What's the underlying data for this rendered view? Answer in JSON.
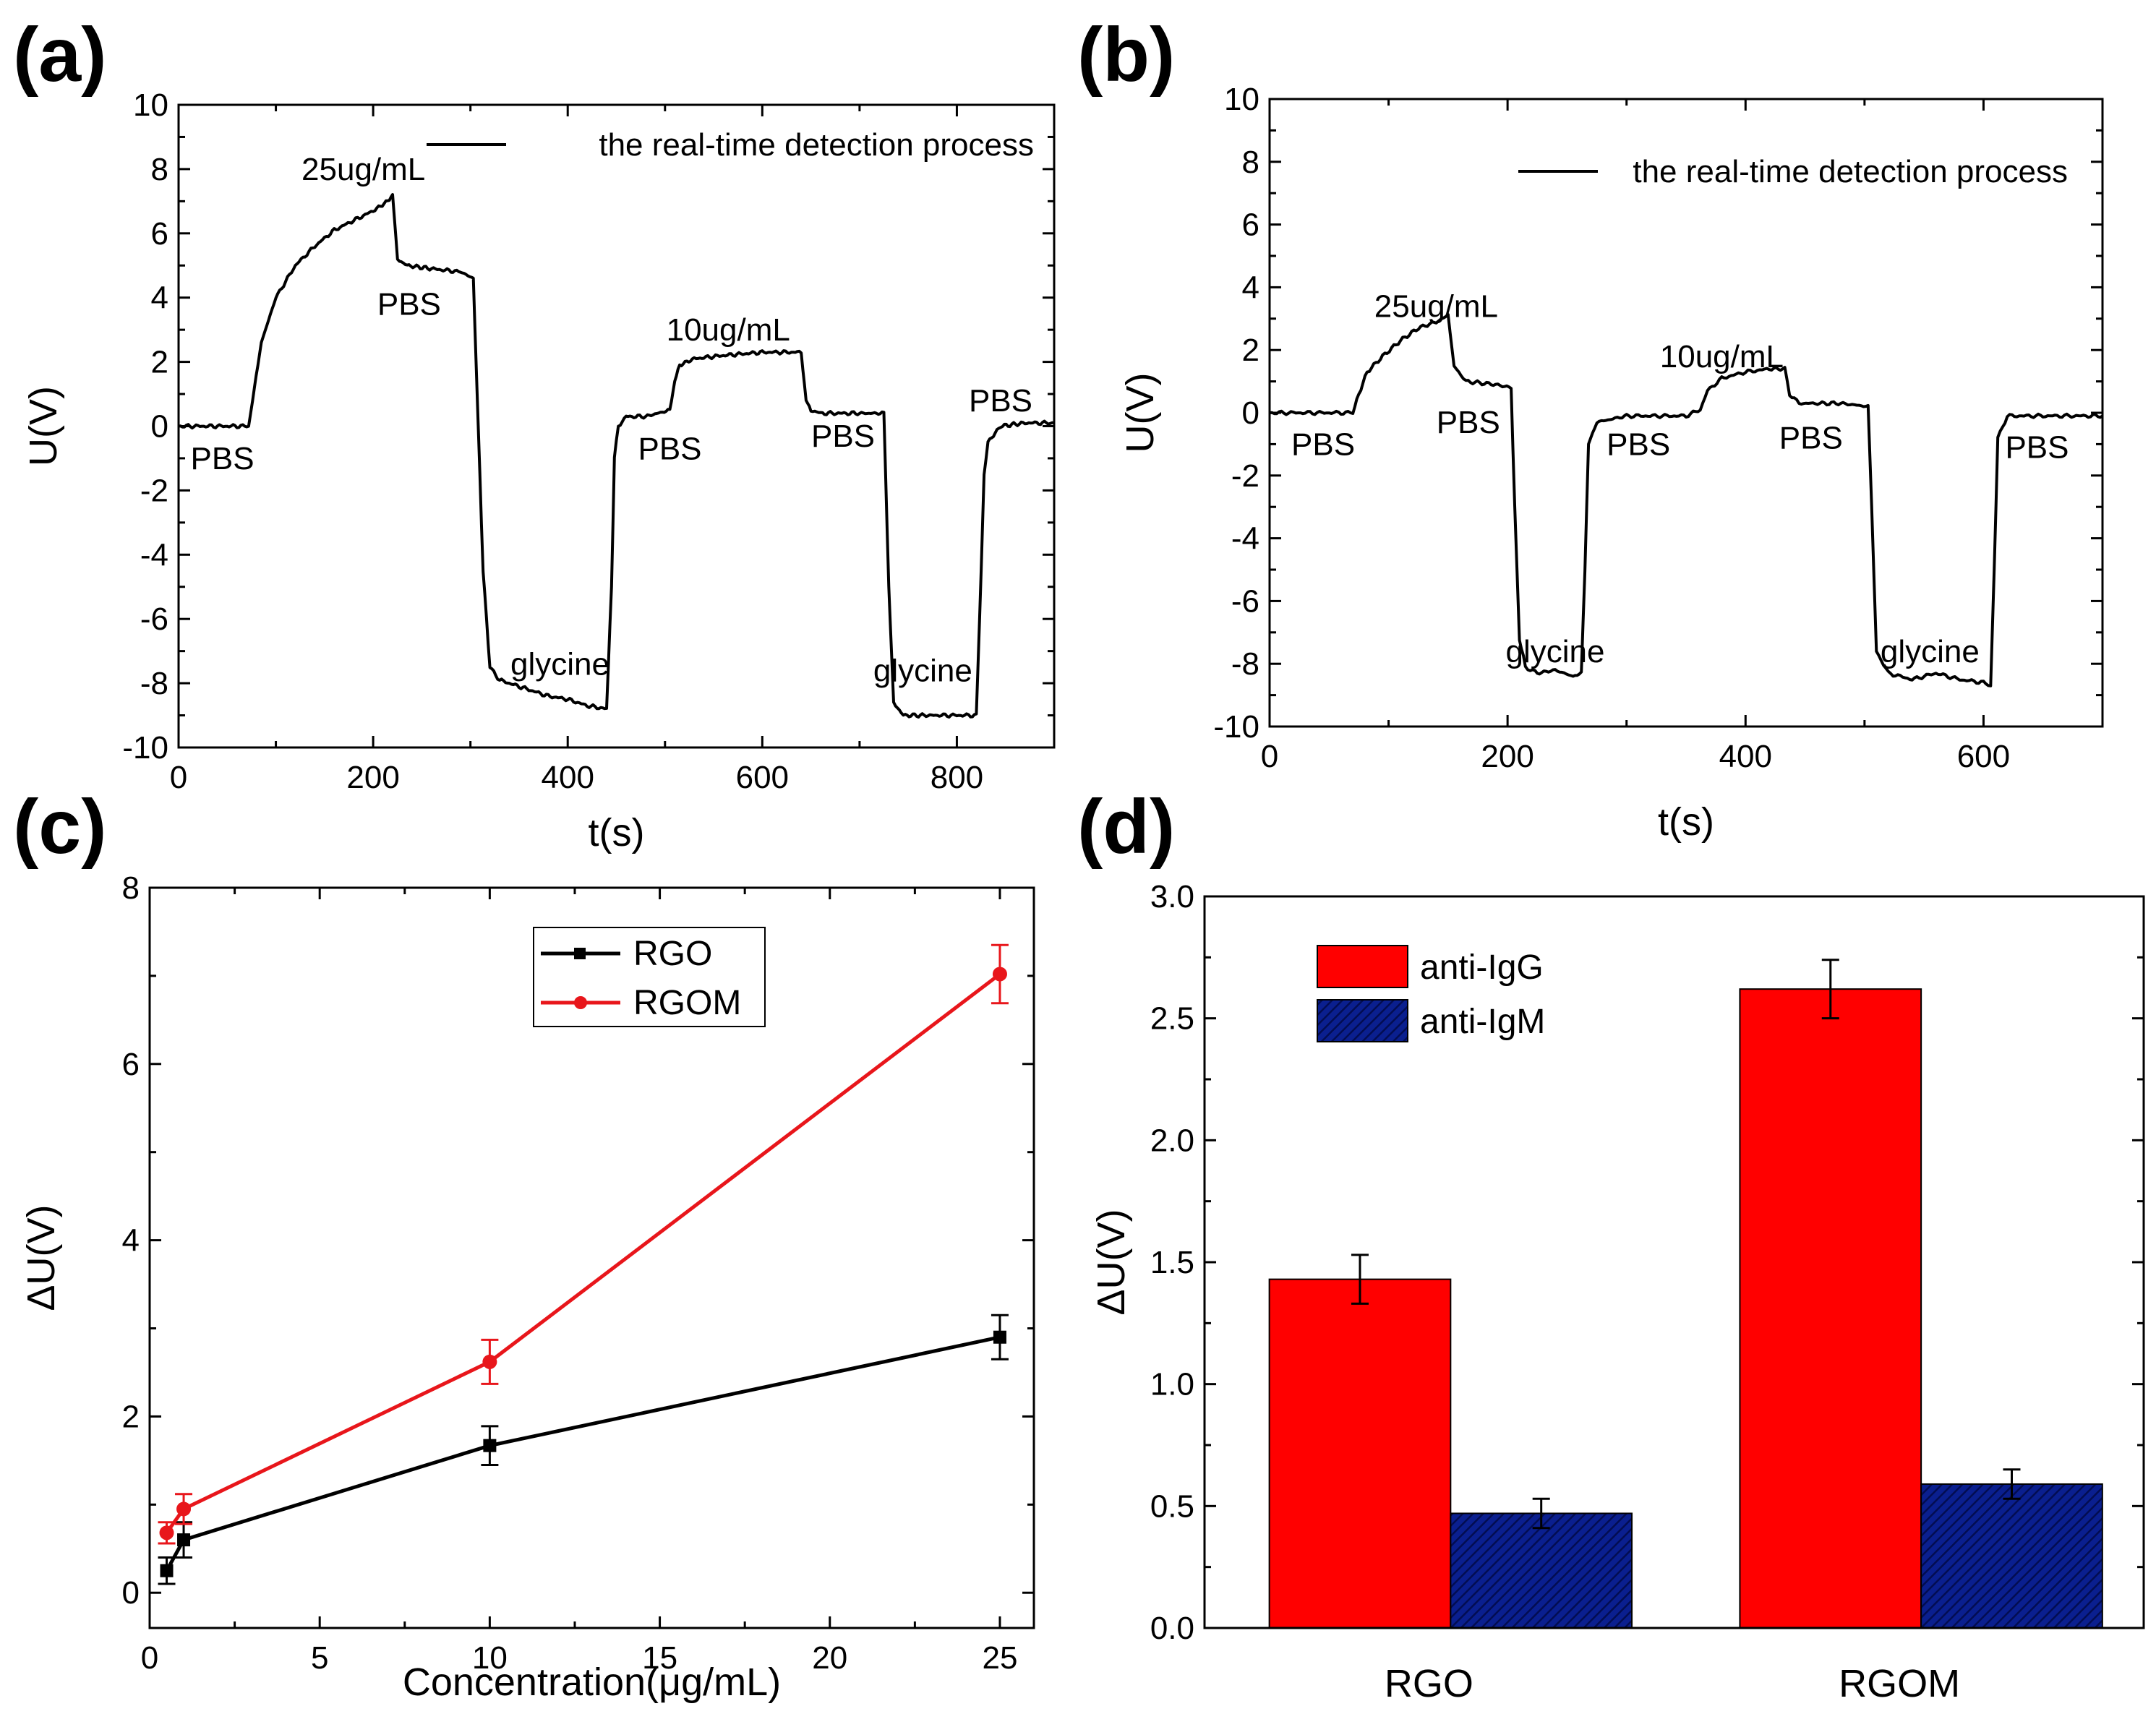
{
  "figure": {
    "panel_letters": [
      "(a)",
      "(b)",
      "(c)",
      "(d)"
    ]
  },
  "chart_data": [
    {
      "type": "line",
      "panel": "(a)",
      "xlabel": "t(s)",
      "ylabel": "U(V)",
      "xlim": [
        0,
        900
      ],
      "ylim": [
        -10,
        10
      ],
      "xticks": [
        0,
        200,
        400,
        600,
        800
      ],
      "yticks": [
        -10,
        -8,
        -6,
        -4,
        -2,
        0,
        2,
        4,
        6,
        8,
        10
      ],
      "legend": {
        "position": "top-right",
        "entries": [
          {
            "name": "the real-time detection process",
            "color": "#000000"
          }
        ]
      },
      "series": [
        {
          "name": "the real-time detection process",
          "color": "#000000",
          "x": [
            0,
            50,
            72,
            78,
            85,
            100,
            120,
            140,
            160,
            180,
            200,
            215,
            220,
            225,
            235,
            260,
            290,
            303,
            308,
            313,
            320,
            330,
            340,
            360,
            380,
            400,
            420,
            440,
            445,
            448,
            452,
            460,
            480,
            505,
            510,
            515,
            530,
            560,
            600,
            640,
            645,
            650,
            660,
            700,
            725,
            730,
            735,
            745,
            780,
            820,
            825,
            828,
            832,
            845,
            870,
            900
          ],
          "y": [
            0,
            0,
            0,
            1.2,
            2.6,
            4.0,
            5.0,
            5.6,
            6.1,
            6.4,
            6.7,
            7.0,
            7.2,
            5.2,
            5.0,
            4.9,
            4.8,
            4.6,
            0.0,
            -4.5,
            -7.5,
            -7.9,
            -8.0,
            -8.2,
            -8.4,
            -8.5,
            -8.7,
            -8.8,
            -5.0,
            -1.0,
            0.0,
            0.3,
            0.3,
            0.5,
            1.4,
            1.9,
            2.1,
            2.2,
            2.3,
            2.3,
            0.8,
            0.5,
            0.4,
            0.4,
            0.4,
            -5.0,
            -8.6,
            -9.0,
            -9.0,
            -9.0,
            -4.5,
            -1.5,
            -0.5,
            0.0,
            0.1,
            0.1
          ]
        }
      ],
      "annotations": [
        {
          "text": "25ug/mL",
          "x": 190,
          "y": 8.0
        },
        {
          "text": "PBS",
          "x": 45,
          "y": -1.0
        },
        {
          "text": "PBS",
          "x": 237,
          "y": 3.8
        },
        {
          "text": "glycine",
          "x": 392,
          "y": -7.4
        },
        {
          "text": "PBS",
          "x": 505,
          "y": -0.7
        },
        {
          "text": "10ug/mL",
          "x": 565,
          "y": 3.0
        },
        {
          "text": "PBS",
          "x": 683,
          "y": -0.3
        },
        {
          "text": "glycine",
          "x": 765,
          "y": -7.6
        },
        {
          "text": "PBS",
          "x": 845,
          "y": 0.8
        }
      ]
    },
    {
      "type": "line",
      "panel": "(b)",
      "xlabel": "t(s)",
      "ylabel": "U(V)",
      "xlim": [
        0,
        700
      ],
      "ylim": [
        -10,
        10
      ],
      "xticks": [
        0,
        200,
        400,
        600
      ],
      "yticks": [
        -10,
        -8,
        -6,
        -4,
        -2,
        0,
        2,
        4,
        6,
        8,
        10
      ],
      "legend": {
        "position": "top-right",
        "entries": [
          {
            "name": "the real-time detection process",
            "color": "#000000"
          }
        ]
      },
      "series": [
        {
          "name": "the real-time detection process",
          "color": "#000000",
          "x": [
            0,
            50,
            70,
            75,
            82,
            95,
            110,
            125,
            140,
            150,
            155,
            165,
            190,
            203,
            206,
            210,
            215,
            225,
            240,
            255,
            262,
            265,
            268,
            275,
            300,
            350,
            362,
            368,
            380,
            400,
            420,
            433,
            437,
            445,
            480,
            503,
            506,
            510,
            520,
            540,
            560,
            580,
            600,
            606,
            609,
            612,
            620,
            660,
            700
          ],
          "y": [
            0,
            0,
            0,
            0.6,
            1.3,
            1.8,
            2.3,
            2.7,
            2.9,
            3.1,
            1.5,
            1.0,
            0.9,
            0.8,
            -3.0,
            -7.2,
            -8.1,
            -8.3,
            -8.2,
            -8.4,
            -8.3,
            -5.0,
            -1.0,
            -0.3,
            -0.1,
            -0.1,
            0.1,
            0.7,
            1.1,
            1.3,
            1.4,
            1.4,
            0.6,
            0.3,
            0.3,
            0.2,
            -3.0,
            -7.6,
            -8.3,
            -8.5,
            -8.3,
            -8.5,
            -8.6,
            -8.7,
            -5.0,
            -0.8,
            -0.1,
            -0.1,
            -0.1
          ]
        }
      ],
      "annotations": [
        {
          "text": "25ug/mL",
          "x": 140,
          "y": 3.4
        },
        {
          "text": "PBS",
          "x": 45,
          "y": -1.0
        },
        {
          "text": "PBS",
          "x": 167,
          "y": -0.3
        },
        {
          "text": "glycine",
          "x": 240,
          "y": -7.6
        },
        {
          "text": "PBS",
          "x": 310,
          "y": -1.0
        },
        {
          "text": "10ug/mL",
          "x": 380,
          "y": 1.8
        },
        {
          "text": "PBS",
          "x": 455,
          "y": -0.8
        },
        {
          "text": "glycine",
          "x": 555,
          "y": -7.6
        },
        {
          "text": "PBS",
          "x": 645,
          "y": -1.1
        }
      ]
    },
    {
      "type": "line",
      "panel": "(c)",
      "xlabel": "Concentration(μg/mL)",
      "ylabel": "ΔU(V)",
      "xlim": [
        0,
        26
      ],
      "ylim": [
        -0.4,
        8
      ],
      "xticks": [
        0,
        5,
        10,
        15,
        20,
        25
      ],
      "yticks": [
        0,
        2,
        4,
        6,
        8
      ],
      "legend": {
        "position": "top-center",
        "entries": [
          {
            "name": "RGO",
            "color": "#000000"
          },
          {
            "name": "RGOM",
            "color": "#e8161b"
          }
        ]
      },
      "series": [
        {
          "name": "RGO",
          "color": "#000000",
          "marker": "square",
          "x": [
            0.5,
            1,
            10,
            25
          ],
          "y": [
            0.25,
            0.6,
            1.67,
            2.9
          ],
          "err": [
            0.15,
            0.2,
            0.22,
            0.25
          ]
        },
        {
          "name": "RGOM",
          "color": "#e8161b",
          "marker": "circle",
          "x": [
            0.5,
            1,
            10,
            25
          ],
          "y": [
            0.68,
            0.95,
            2.62,
            7.02
          ],
          "err": [
            0.12,
            0.17,
            0.25,
            0.33
          ]
        }
      ]
    },
    {
      "type": "bar",
      "panel": "(d)",
      "ylabel": "ΔU(V)",
      "ylim": [
        0,
        3.0
      ],
      "yticks": [
        0.0,
        0.5,
        1.0,
        1.5,
        2.0,
        2.5,
        3.0
      ],
      "ytick_labels": [
        "0.0",
        "0.5",
        "1.0",
        "1.5",
        "2.0",
        "2.5",
        "3.0"
      ],
      "categories": [
        "RGO",
        "RGOM"
      ],
      "legend": {
        "position": "top-left",
        "entries": [
          {
            "name": "anti-IgG",
            "color": "#ff0000",
            "pattern": "solid"
          },
          {
            "name": "anti-IgM",
            "color": "#0a1f8f",
            "pattern": "hatched"
          }
        ]
      },
      "series": [
        {
          "name": "anti-IgG",
          "color": "#ff0000",
          "values": [
            1.43,
            2.62
          ],
          "err": [
            0.1,
            0.12
          ]
        },
        {
          "name": "anti-IgM",
          "color": "#0a1f8f",
          "values": [
            0.47,
            0.59
          ],
          "err": [
            0.06,
            0.06
          ]
        }
      ]
    }
  ]
}
